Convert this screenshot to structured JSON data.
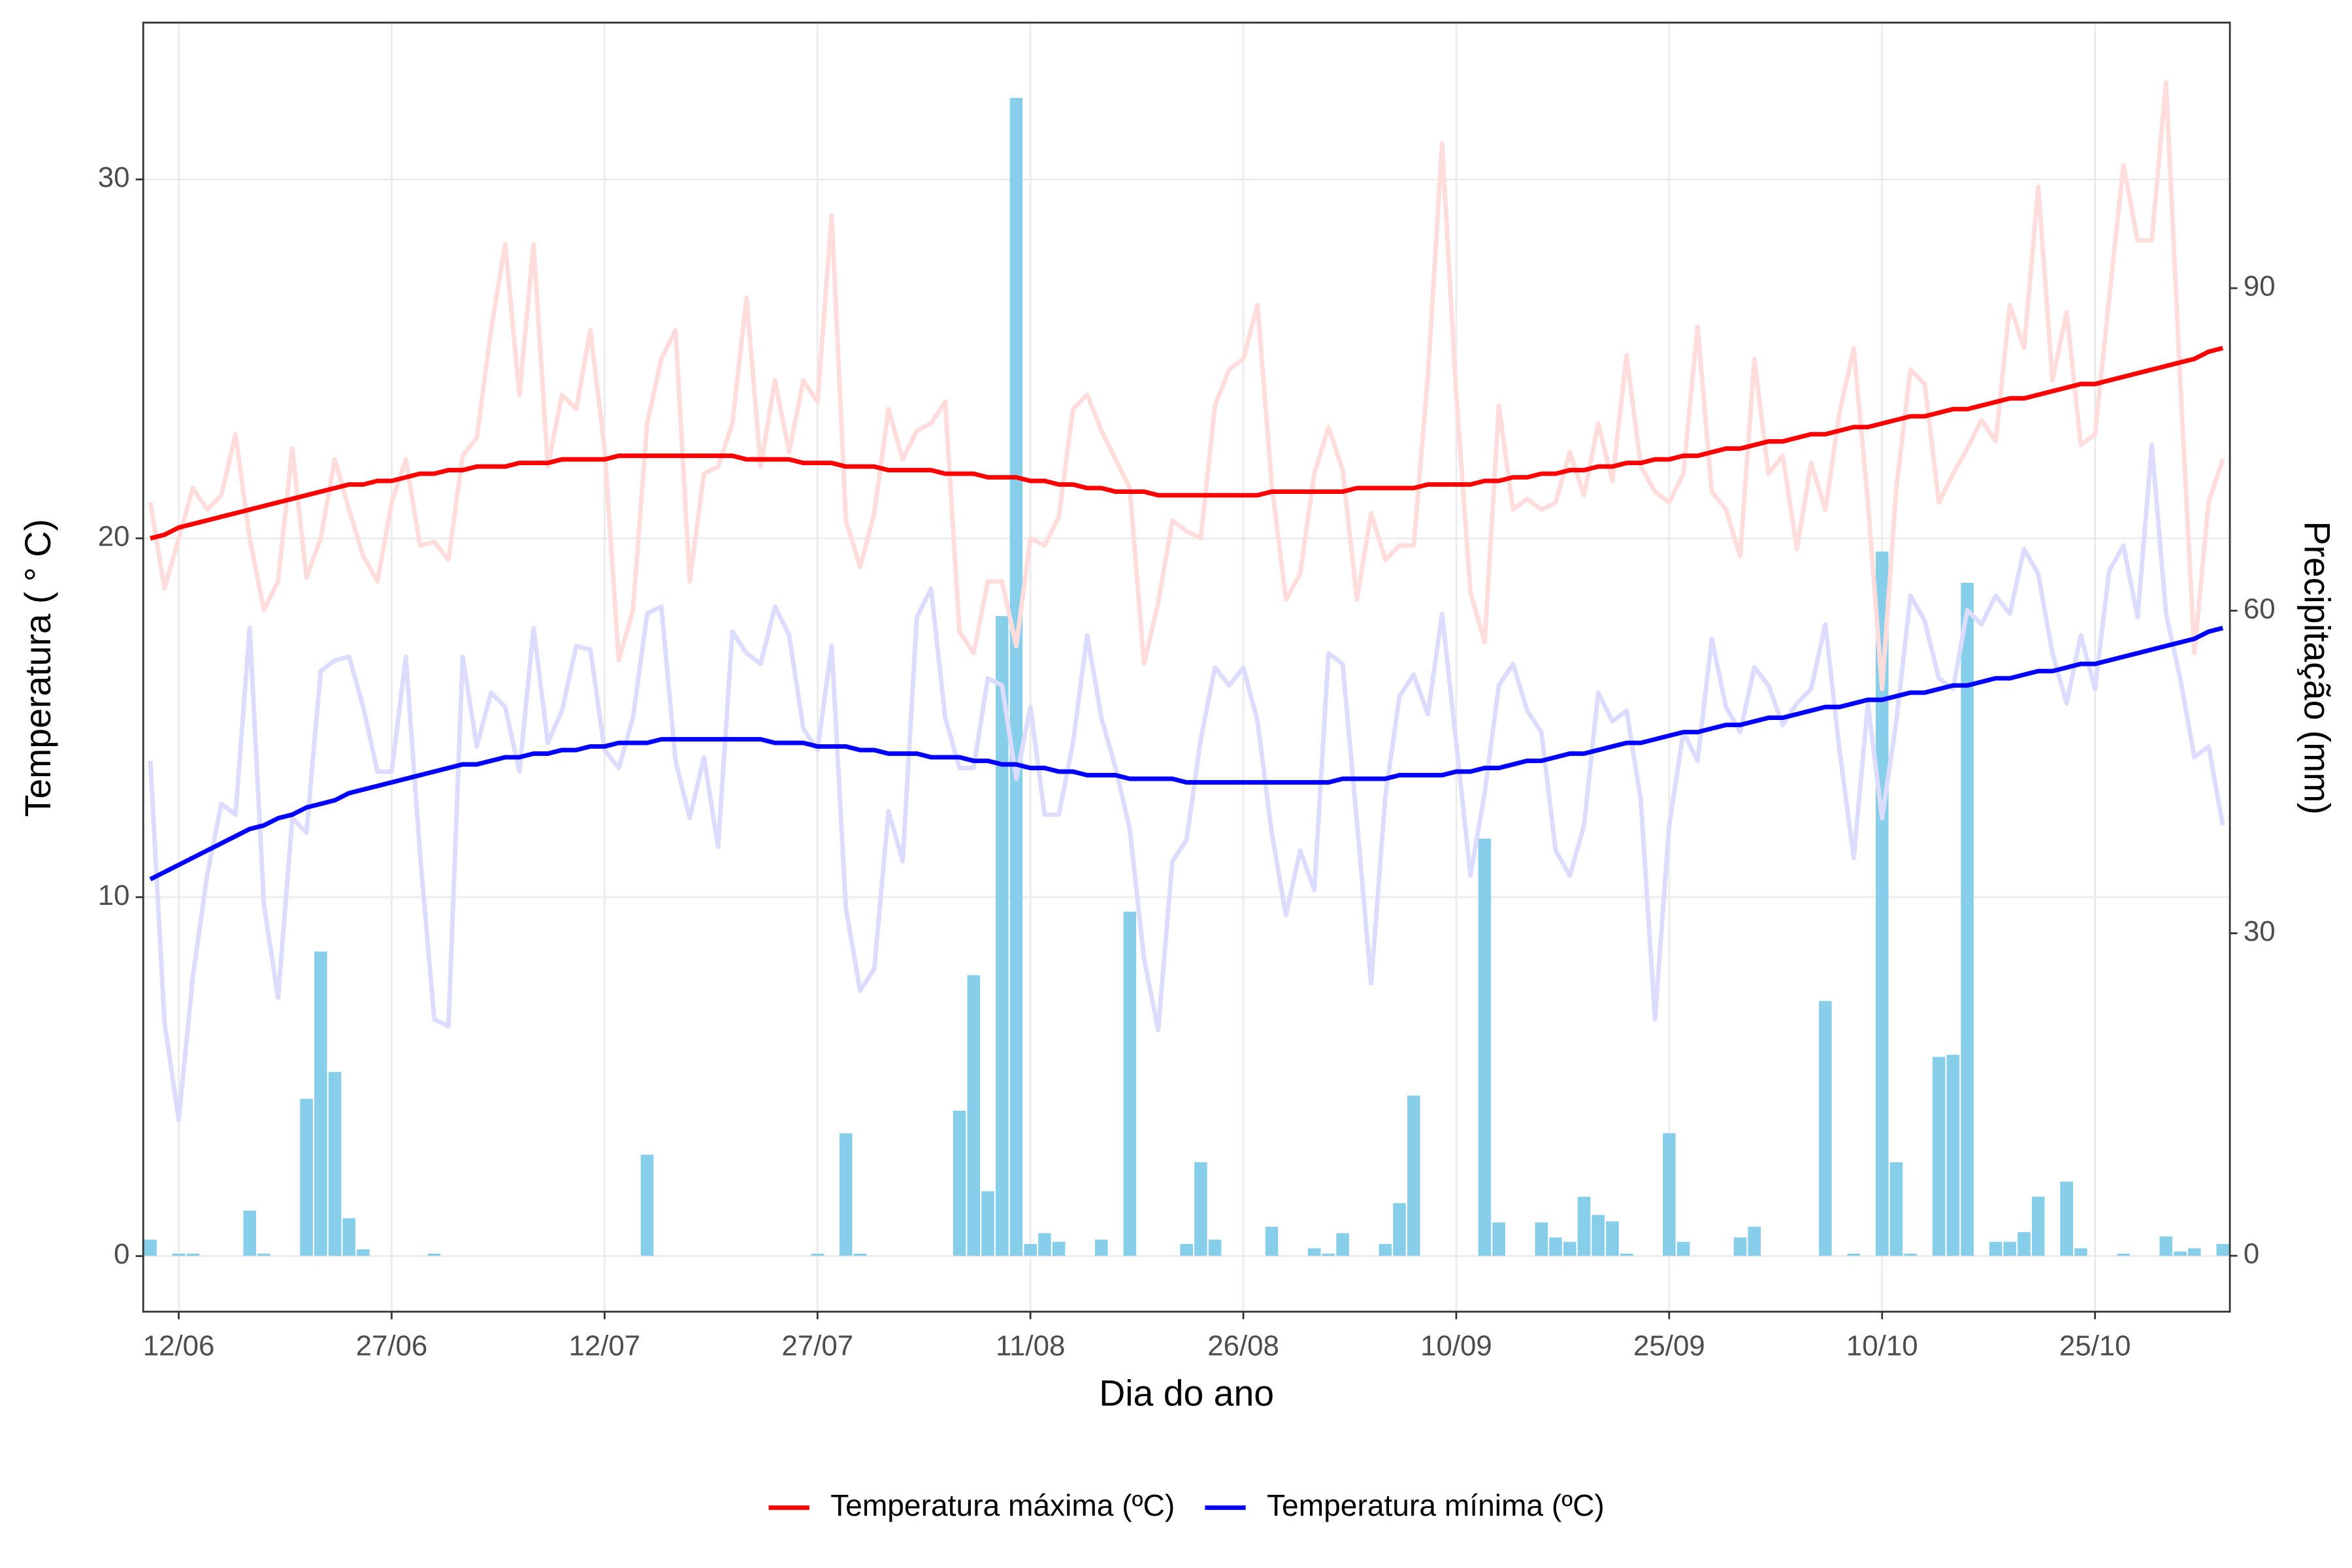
{
  "chart_data": {
    "type": "line",
    "x_label": "Dia do ano",
    "y_label": "Temperatura ( ° C)",
    "y2_label": "Precipitação (mm)",
    "categories": [
      null,
      null,
      "12/06",
      null,
      null,
      null,
      null,
      null,
      null,
      null,
      null,
      null,
      null,
      null,
      null,
      null,
      null,
      "27/06",
      null,
      null,
      null,
      null,
      null,
      null,
      null,
      null,
      null,
      null,
      null,
      null,
      null,
      null,
      "12/07",
      null,
      null,
      null,
      null,
      null,
      null,
      null,
      null,
      null,
      null,
      null,
      null,
      null,
      null,
      "27/07",
      null,
      null,
      null,
      null,
      null,
      null,
      null,
      null,
      null,
      null,
      null,
      null,
      null,
      null,
      "11/08",
      null,
      null,
      null,
      null,
      null,
      null,
      null,
      null,
      null,
      null,
      null,
      null,
      null,
      null,
      "26/08",
      null,
      null,
      null,
      null,
      null,
      null,
      null,
      null,
      null,
      null,
      null,
      null,
      null,
      null,
      "10/09",
      null,
      null,
      null,
      null,
      null,
      null,
      null,
      null,
      null,
      null,
      null,
      null,
      null,
      null,
      "25/09",
      null,
      null,
      null,
      null,
      null,
      null,
      null,
      null,
      null,
      null,
      null,
      null,
      null,
      null,
      "10/10",
      null,
      null,
      null,
      null,
      null,
      null,
      null,
      null,
      null,
      null,
      null,
      null,
      null,
      null,
      "25/10",
      null,
      null,
      null,
      null,
      null,
      null,
      null,
      null,
      null
    ],
    "ylim": [
      -1.55,
      34.37
    ],
    "yticks": [
      0,
      10,
      20,
      30
    ],
    "y2lim": [
      -5.2,
      114.7
    ],
    "y2ticks": [
      0,
      30,
      60,
      90
    ],
    "grid": true,
    "legend_position": "bottom",
    "series": [
      {
        "name": "Temperatura máxima (ºC)",
        "color": "#ff0000",
        "raw_color": "#ffdddd",
        "values": [
          20.0,
          20.1,
          20.3,
          20.4,
          20.5,
          20.6,
          20.7,
          20.8,
          20.9,
          21.0,
          21.1,
          21.2,
          21.3,
          21.4,
          21.5,
          21.5,
          21.6,
          21.6,
          21.7,
          21.8,
          21.8,
          21.9,
          21.9,
          22.0,
          22.0,
          22.0,
          22.1,
          22.1,
          22.1,
          22.2,
          22.2,
          22.2,
          22.2,
          22.3,
          22.3,
          22.3,
          22.3,
          22.3,
          22.3,
          22.3,
          22.3,
          22.3,
          22.2,
          22.2,
          22.2,
          22.2,
          22.1,
          22.1,
          22.1,
          22.0,
          22.0,
          22.0,
          21.9,
          21.9,
          21.9,
          21.9,
          21.8,
          21.8,
          21.8,
          21.7,
          21.7,
          21.7,
          21.6,
          21.6,
          21.5,
          21.5,
          21.4,
          21.4,
          21.3,
          21.3,
          21.3,
          21.2,
          21.2,
          21.2,
          21.2,
          21.2,
          21.2,
          21.2,
          21.2,
          21.3,
          21.3,
          21.3,
          21.3,
          21.3,
          21.3,
          21.4,
          21.4,
          21.4,
          21.4,
          21.4,
          21.5,
          21.5,
          21.5,
          21.5,
          21.6,
          21.6,
          21.7,
          21.7,
          21.8,
          21.8,
          21.9,
          21.9,
          22.0,
          22.0,
          22.1,
          22.1,
          22.2,
          22.2,
          22.3,
          22.3,
          22.4,
          22.5,
          22.5,
          22.6,
          22.7,
          22.7,
          22.8,
          22.9,
          22.9,
          23.0,
          23.1,
          23.1,
          23.2,
          23.3,
          23.4,
          23.4,
          23.5,
          23.6,
          23.6,
          23.7,
          23.8,
          23.9,
          23.9,
          24.0,
          24.1,
          24.2,
          24.3,
          24.3,
          24.4,
          24.5,
          24.6,
          24.7,
          24.8,
          24.9,
          25.0,
          25.2,
          25.3
        ],
        "raw_values": [
          21,
          18.6,
          20,
          21.4,
          20.8,
          21.2,
          22.9,
          20,
          18,
          18.8,
          22.5,
          18.9,
          20,
          22.2,
          20.8,
          19.5,
          18.8,
          21,
          22.2,
          19.8,
          19.9,
          19.4,
          22.3,
          22.8,
          25.8,
          28.2,
          24,
          28.2,
          22,
          24,
          23.6,
          25.8,
          22.5,
          16.6,
          18,
          23.2,
          25,
          25.8,
          18.8,
          21.8,
          22,
          23.2,
          26.7,
          22,
          24.4,
          22.4,
          24.4,
          23.8,
          29,
          20.5,
          19.2,
          20.7,
          23.6,
          22.2,
          23,
          23.2,
          23.8,
          17.4,
          16.8,
          18.8,
          18.8,
          17,
          20,
          19.8,
          20.6,
          23.6,
          24,
          23,
          22.2,
          21.4,
          16.5,
          18.2,
          20.5,
          20.2,
          20,
          23.7,
          24.7,
          25,
          26.5,
          21.5,
          18.3,
          19,
          21.8,
          23.1,
          21.9,
          18.3,
          20.7,
          19.4,
          19.8,
          19.8,
          24.5,
          31,
          24,
          18.5,
          17.1,
          23.7,
          20.8,
          21.1,
          20.8,
          21,
          22.4,
          21.2,
          23.2,
          21.6,
          25.1,
          22,
          21.3,
          21,
          21.8,
          25.9,
          21.3,
          20.8,
          19.5,
          25,
          21.8,
          22.3,
          19.7,
          22.1,
          20.8,
          23.5,
          25.3,
          21,
          15.8,
          21.4,
          24.7,
          24.3,
          21,
          21.8,
          22.5,
          23.3,
          22.7,
          26.5,
          25.3,
          29.8,
          24.4,
          26.3,
          22.6,
          22.9,
          26.7,
          30.4,
          28.3,
          28.3,
          32.7,
          24.4,
          16.8,
          21,
          22.2
        ]
      },
      {
        "name": "Temperatura mínima (ºC)",
        "color": "#0000ff",
        "raw_color": "#dcdcff",
        "values": [
          10.5,
          10.7,
          10.9,
          11.1,
          11.3,
          11.5,
          11.7,
          11.9,
          12.0,
          12.2,
          12.3,
          12.5,
          12.6,
          12.7,
          12.9,
          13.0,
          13.1,
          13.2,
          13.3,
          13.4,
          13.5,
          13.6,
          13.7,
          13.7,
          13.8,
          13.9,
          13.9,
          14.0,
          14.0,
          14.1,
          14.1,
          14.2,
          14.2,
          14.3,
          14.3,
          14.3,
          14.4,
          14.4,
          14.4,
          14.4,
          14.4,
          14.4,
          14.4,
          14.4,
          14.3,
          14.3,
          14.3,
          14.2,
          14.2,
          14.2,
          14.1,
          14.1,
          14.0,
          14.0,
          14.0,
          13.9,
          13.9,
          13.9,
          13.8,
          13.8,
          13.7,
          13.7,
          13.6,
          13.6,
          13.5,
          13.5,
          13.4,
          13.4,
          13.4,
          13.3,
          13.3,
          13.3,
          13.3,
          13.2,
          13.2,
          13.2,
          13.2,
          13.2,
          13.2,
          13.2,
          13.2,
          13.2,
          13.2,
          13.2,
          13.3,
          13.3,
          13.3,
          13.3,
          13.4,
          13.4,
          13.4,
          13.4,
          13.5,
          13.5,
          13.6,
          13.6,
          13.7,
          13.8,
          13.8,
          13.9,
          14.0,
          14.0,
          14.1,
          14.2,
          14.3,
          14.3,
          14.4,
          14.5,
          14.6,
          14.6,
          14.7,
          14.8,
          14.8,
          14.9,
          15.0,
          15.0,
          15.1,
          15.2,
          15.3,
          15.3,
          15.4,
          15.5,
          15.5,
          15.6,
          15.7,
          15.7,
          15.8,
          15.9,
          15.9,
          16.0,
          16.1,
          16.1,
          16.2,
          16.3,
          16.3,
          16.4,
          16.5,
          16.5,
          16.6,
          16.7,
          16.8,
          16.9,
          17.0,
          17.1,
          17.2,
          17.4,
          17.5
        ],
        "raw_values": [
          13.8,
          6.5,
          3.8,
          7.8,
          10.6,
          12.6,
          12.3,
          17.5,
          9.8,
          7.2,
          12.2,
          11.8,
          16.3,
          16.6,
          16.7,
          15.3,
          13.5,
          13.5,
          16.7,
          11.2,
          6.6,
          6.4,
          16.7,
          14.2,
          15.7,
          15.3,
          13.5,
          17.5,
          14.3,
          15.2,
          17,
          16.9,
          14.1,
          13.6,
          15,
          17.9,
          18.1,
          13.8,
          12.2,
          13.9,
          11.4,
          17.4,
          16.8,
          16.5,
          18.1,
          17.3,
          14.7,
          14.1,
          17,
          9.7,
          7.4,
          8,
          12.4,
          11,
          17.8,
          18.6,
          15,
          13.6,
          13.6,
          16.1,
          15.9,
          13.3,
          15.3,
          12.3,
          12.3,
          14.3,
          17.3,
          15,
          13.6,
          11.9,
          8.3,
          6.3,
          11,
          11.6,
          14.4,
          16.4,
          15.9,
          16.4,
          14.9,
          11.8,
          9.5,
          11.3,
          10.2,
          16.8,
          16.5,
          12.1,
          7.6,
          12.8,
          15.6,
          16.2,
          15.1,
          17.9,
          14.3,
          10.6,
          12.9,
          15.9,
          16.5,
          15.2,
          14.6,
          11.3,
          10.6,
          12,
          15.7,
          14.9,
          15.2,
          12.7,
          6.6,
          12,
          14.6,
          13.8,
          17.2,
          15.3,
          14.6,
          16.4,
          15.9,
          14.8,
          15.4,
          15.8,
          17.6,
          14.1,
          11.1,
          15.4,
          12.2,
          14.9,
          18.4,
          17.7,
          16.1,
          15.8,
          18,
          17.6,
          18.4,
          17.9,
          19.7,
          19,
          16.8,
          15.4,
          17.3,
          15.8,
          19.1,
          19.8,
          17.8,
          22.6,
          17.9,
          16.1,
          13.9,
          14.2,
          12
        ]
      }
    ],
    "bar_series": {
      "color": "#87ceeb",
      "axis": "y2",
      "values": [
        1.5,
        0,
        0.2,
        0.2,
        0,
        0,
        0,
        4.2,
        0.2,
        0,
        0,
        14.6,
        28.3,
        17.1,
        3.5,
        0.6,
        0,
        0,
        0,
        0,
        0.2,
        0,
        0,
        0,
        0,
        0,
        0,
        0,
        0,
        0,
        0,
        0,
        0,
        0,
        0,
        9.4,
        0,
        0,
        0,
        0,
        0,
        0,
        0,
        0,
        0,
        0,
        0,
        0.2,
        0,
        11.4,
        0.2,
        0,
        0,
        0,
        0,
        0,
        0,
        13.5,
        26.1,
        6.0,
        59.5,
        107.7,
        1.1,
        2.1,
        1.3,
        0,
        0,
        1.5,
        0,
        32,
        0,
        0,
        0,
        1.1,
        8.7,
        1.5,
        0,
        0,
        0,
        2.7,
        0,
        0,
        0.7,
        0.2,
        2.1,
        0,
        0,
        1.1,
        4.9,
        14.9,
        0,
        0,
        0,
        0,
        38.8,
        3.1,
        0,
        0,
        3.1,
        1.7,
        1.3,
        5.5,
        3.8,
        3.2,
        0.2,
        0,
        0,
        11.4,
        1.3,
        0,
        0,
        0,
        1.7,
        2.7,
        0,
        0,
        0,
        0,
        23.7,
        0,
        0.2,
        0,
        65.5,
        8.7,
        0.2,
        0,
        18.5,
        18.7,
        62.6,
        0,
        1.3,
        1.3,
        2.2,
        5.5,
        0,
        6.9,
        0.7,
        0,
        0,
        0.2,
        0,
        0,
        1.8,
        0.4,
        0.7,
        0,
        1.1
      ]
    }
  }
}
